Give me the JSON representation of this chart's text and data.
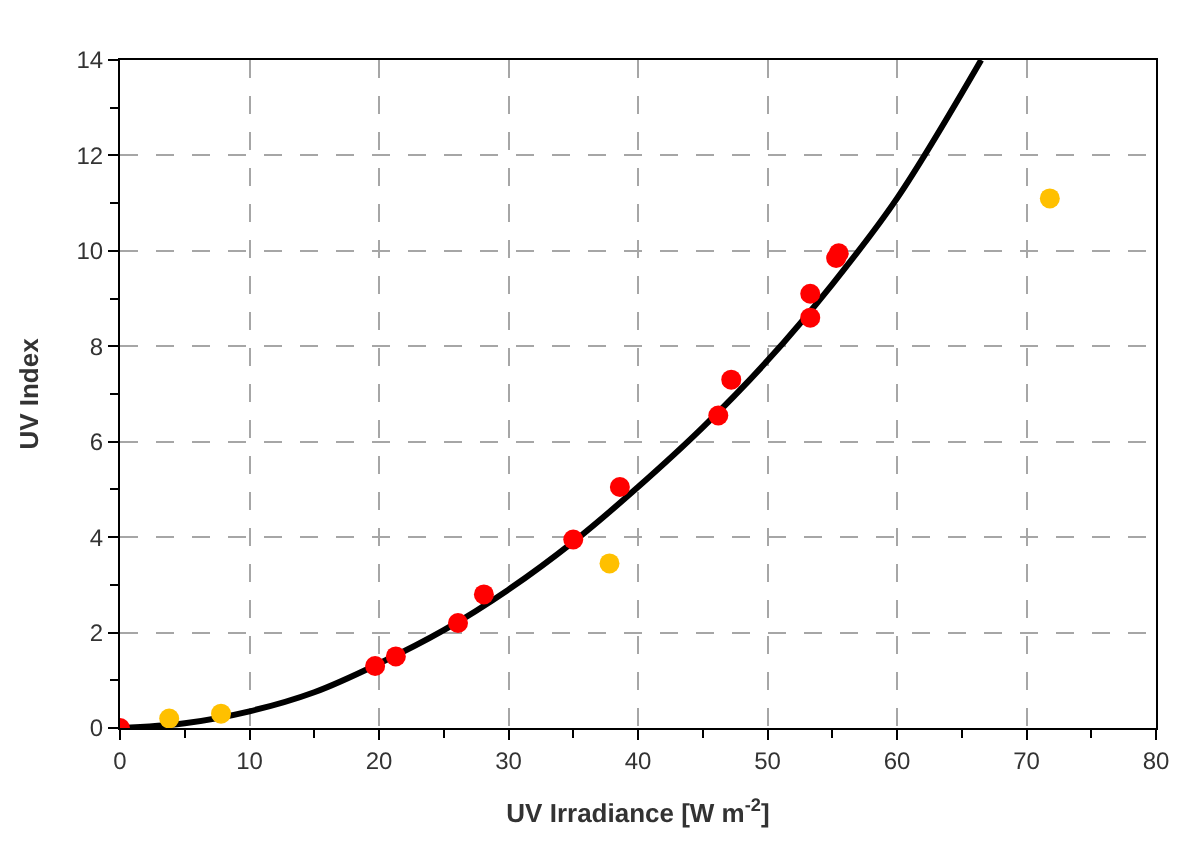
{
  "chart_data": {
    "type": "scatter",
    "xlabel": "UV Irradiance [W m$^{-2}$]",
    "ylabel": "UV Index",
    "xlim": [
      0,
      80
    ],
    "xticks": [
      0,
      10,
      20,
      30,
      40,
      50,
      60,
      70,
      80
    ],
    "ylim": [
      0,
      14
    ],
    "yticks": [
      0,
      2,
      4,
      6,
      8,
      10,
      12,
      14
    ],
    "grid": true,
    "marker": "circle",
    "series": [
      {
        "type": "line",
        "color": "#000000",
        "line_style": "solid",
        "marker": "none",
        "x": [
          0,
          5,
          10,
          15,
          20,
          25,
          30,
          35,
          40,
          45,
          50,
          55,
          60,
          66.5
        ],
        "values": [
          0,
          0.1,
          0.35,
          0.75,
          1.35,
          2.05,
          2.9,
          3.9,
          5.05,
          6.3,
          7.7,
          9.3,
          11.1,
          14
        ]
      },
      {
        "color": "#ff0000",
        "x": [
          0,
          19.7,
          21.3,
          26.1,
          28.1,
          35,
          38.6,
          46.2,
          47.2,
          53.3,
          53.3,
          55.3,
          55.5
        ],
        "values": [
          0,
          1.3,
          1.5,
          2.2,
          2.8,
          3.95,
          5.05,
          6.55,
          7.3,
          8.6,
          9.1,
          9.85,
          9.95
        ]
      },
      {
        "color": "#ffc000",
        "x": [
          3.8,
          7.8,
          37.8,
          71.8
        ],
        "values": [
          0.2,
          0.3,
          3.45,
          11.1
        ]
      }
    ]
  }
}
